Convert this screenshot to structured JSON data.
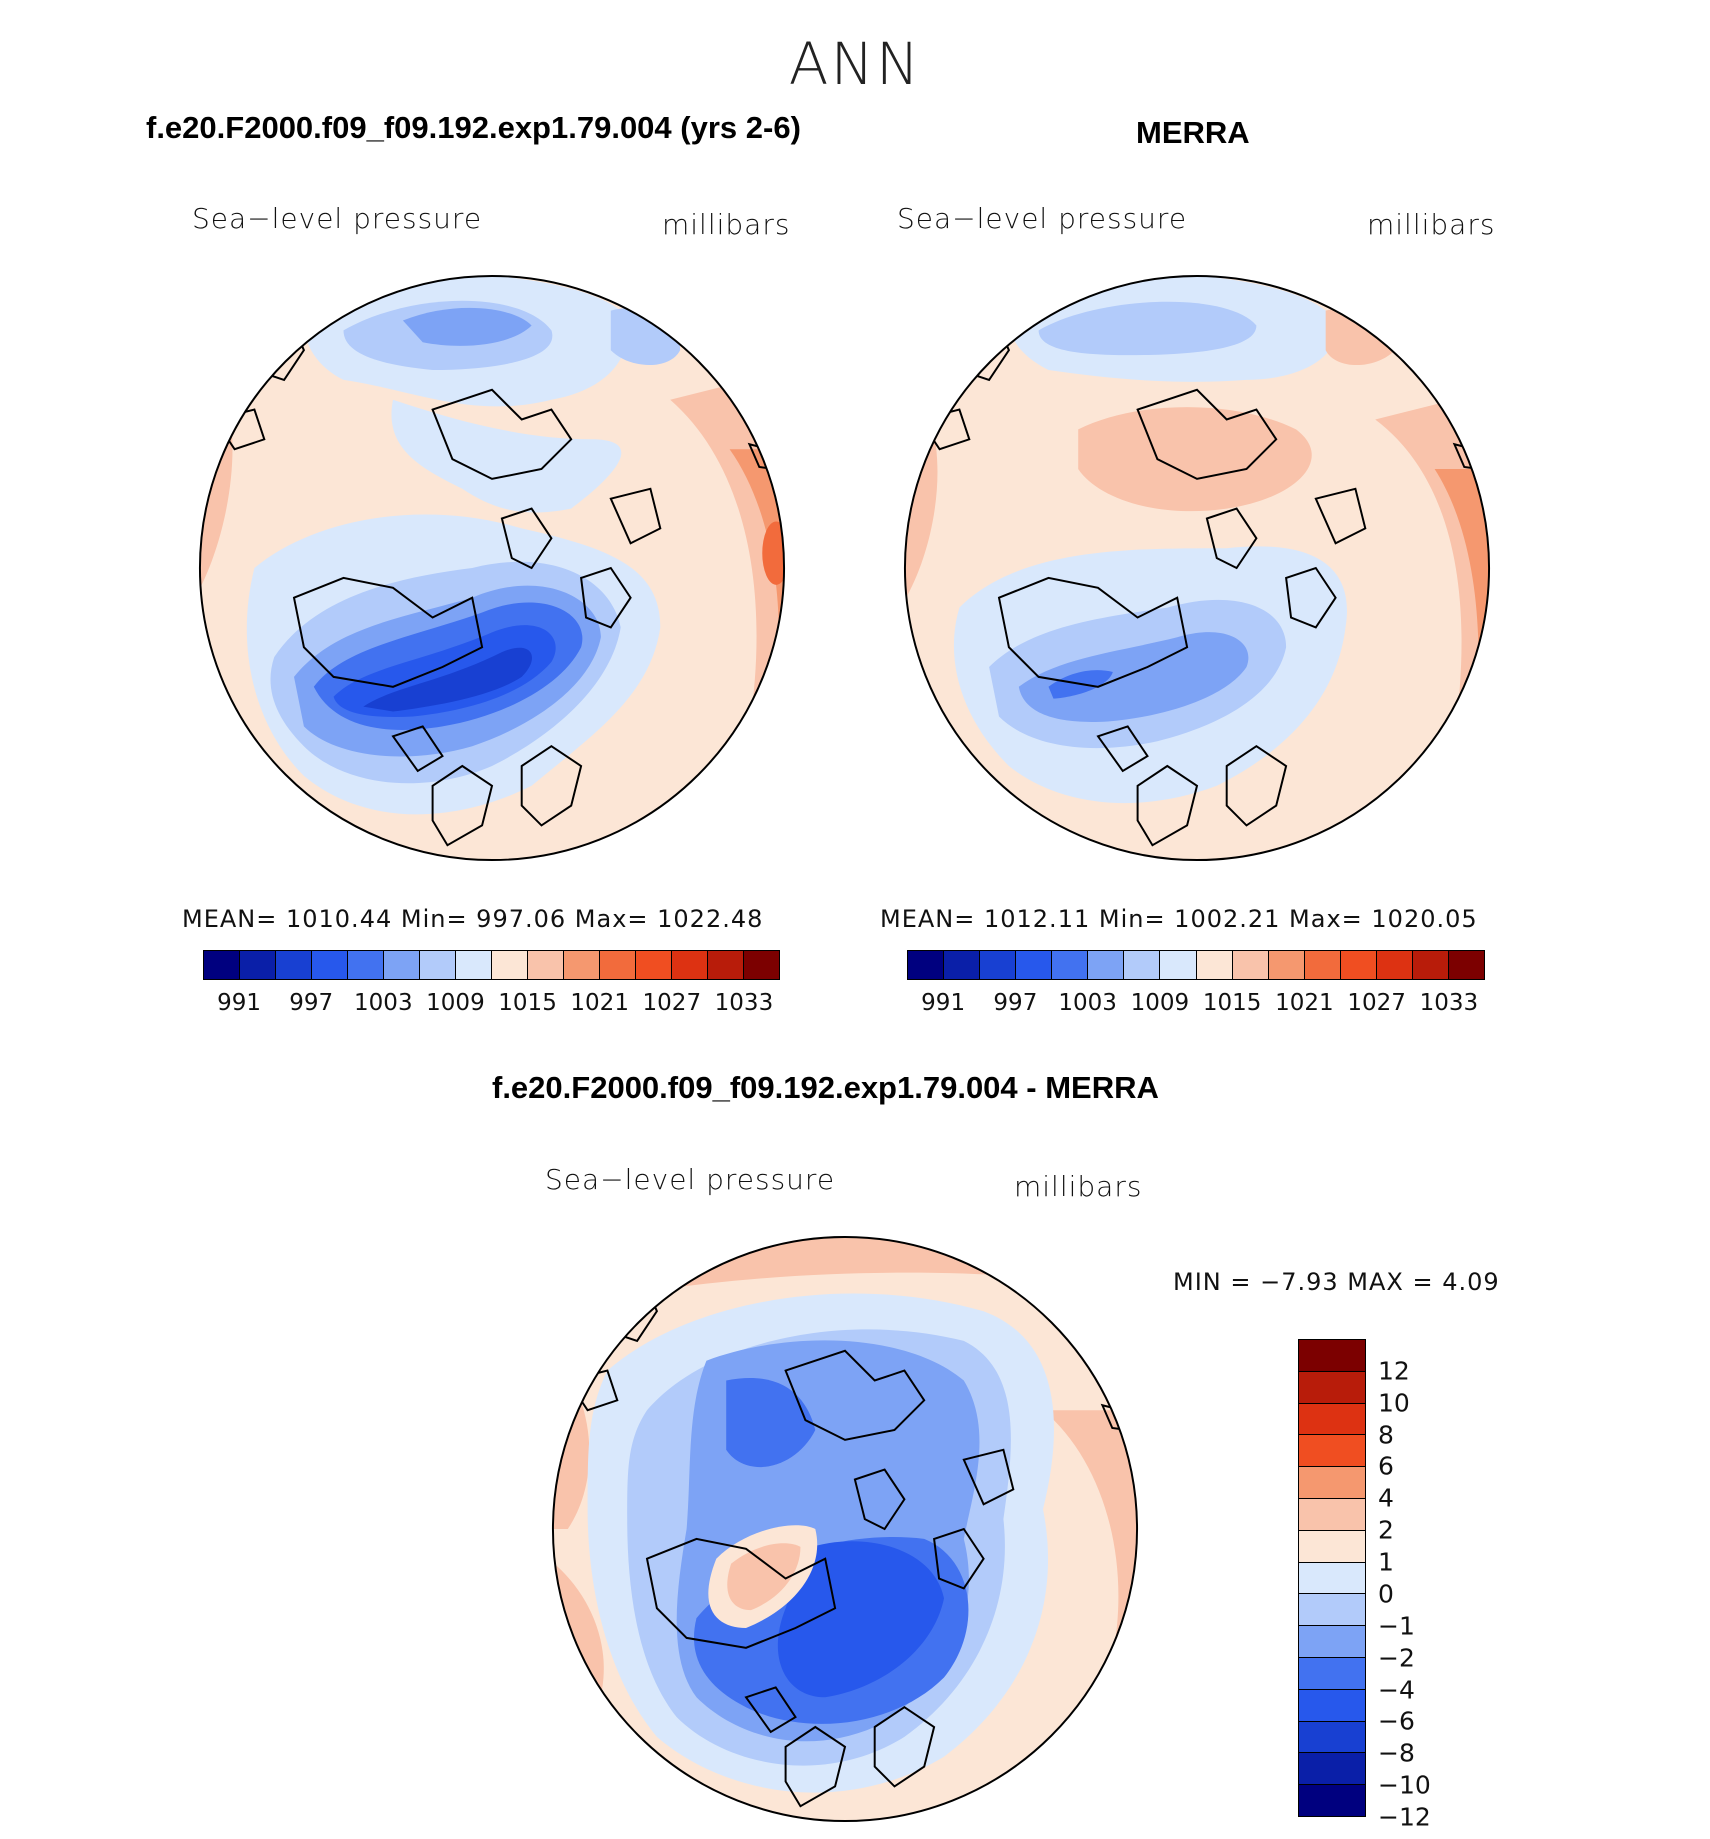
{
  "figure_title": "ANN",
  "panels": [
    {
      "case_title": "f.e20.F2000.f09_f09.192.exp1.79.004 (yrs 2-6)",
      "variable": "Sea−level pressure",
      "units": "millibars",
      "stats": "MEAN=  1010.44   Min=  997.06    Max=  1022.48",
      "levels": [
        "991",
        "997",
        "1003",
        "1009",
        "1015",
        "1021",
        "1027",
        "1033"
      ]
    },
    {
      "case_title": "MERRA",
      "variable": "Sea−level pressure",
      "units": "millibars",
      "stats": "MEAN=  1012.11    Min=  1002.21    Max=  1020.05",
      "levels": [
        "991",
        "997",
        "1003",
        "1009",
        "1015",
        "1021",
        "1027",
        "1033"
      ]
    },
    {
      "case_title": "f.e20.F2000.f09_f09.192.exp1.79.004 - MERRA",
      "variable": "Sea−level pressure",
      "units": "millibars",
      "stats": "MIN =    −7.93 MAX =      4.09",
      "levels": [
        "12",
        "10",
        "8",
        "6",
        "4",
        "2",
        "1",
        "0",
        "−1",
        "−2",
        "−4",
        "−6",
        "−8",
        "−10",
        "−12"
      ]
    }
  ],
  "colors": {
    "abs_scale": [
      "#00007f",
      "#0a1fa8",
      "#1840d2",
      "#2758ec",
      "#4272f0",
      "#7da3f5",
      "#b2cbfa",
      "#d9e8fc",
      "#fce6d6",
      "#f9c3ab",
      "#f5986f",
      "#f26b3c",
      "#f04e21",
      "#dd3212",
      "#b81c0a",
      "#7c0000"
    ],
    "diff_scale": [
      "#7c0000",
      "#b81c0a",
      "#dd3212",
      "#f04e21",
      "#f5986f",
      "#f9c3ab",
      "#fce6d6",
      "#d9e8fc",
      "#b2cbfa",
      "#7da3f5",
      "#4272f0",
      "#2758ec",
      "#1840d2",
      "#0a1fa8",
      "#00007f"
    ]
  }
}
